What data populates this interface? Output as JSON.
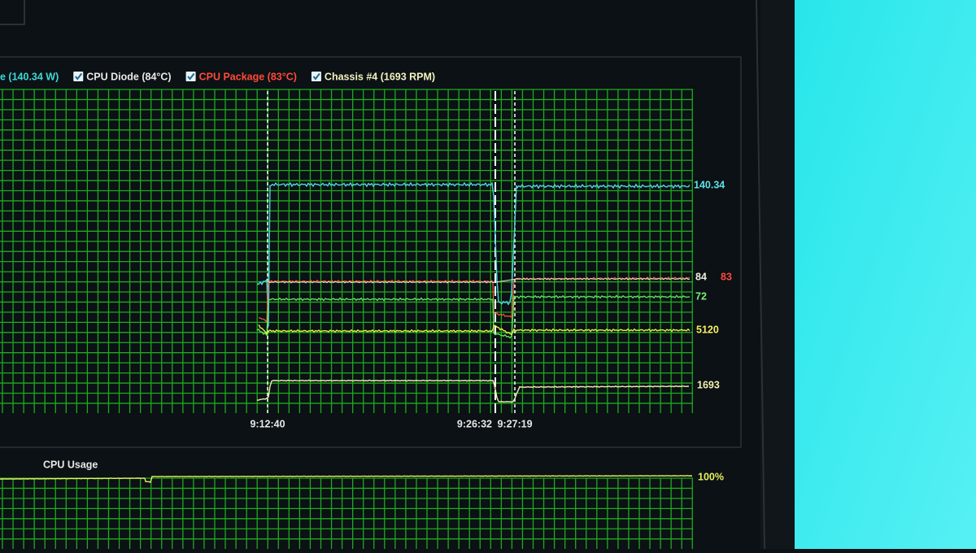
{
  "legend": {
    "items": [
      {
        "label": "e (140.34 W)",
        "color": "#3fd8d8",
        "checkbox": false
      },
      {
        "label": "CPU Diode (84°C)",
        "color": "#e8e8e8",
        "checkbox": true
      },
      {
        "label": "CPU Package (83°C)",
        "color": "#ff4a3a",
        "checkbox": true
      },
      {
        "label": "Chassis #4 (1693 RPM)",
        "color": "#f2f2c0",
        "checkbox": true
      }
    ]
  },
  "graph": {
    "end_labels": [
      {
        "text": "140.34",
        "color": "#5ee0e8"
      },
      {
        "text": "84",
        "color": "#f0f0e0"
      },
      {
        "text": "83",
        "color": "#ff4a3a"
      },
      {
        "text": "72",
        "color": "#7cf07c"
      },
      {
        "text": "5120",
        "color": "#f4f060"
      },
      {
        "text": "1693",
        "color": "#f4f0b0"
      }
    ],
    "time_labels": [
      "9:12:40",
      "9:26:32",
      "9:27:19"
    ]
  },
  "usage_graph": {
    "title": "CPU Usage",
    "end_label": "100%"
  }
}
